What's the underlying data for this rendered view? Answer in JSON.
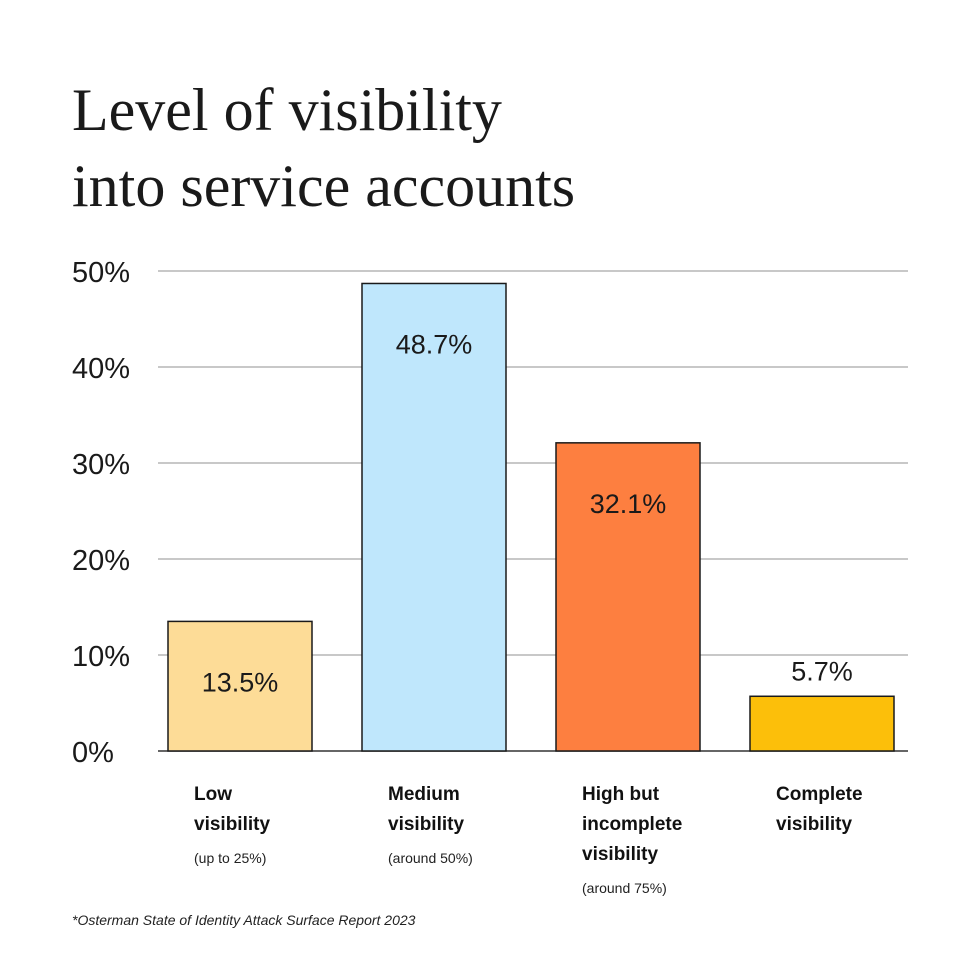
{
  "title_lines": [
    "Level of visibility",
    "into service accounts"
  ],
  "footnote": "*Osterman State of Identity Attack Surface Report 2023",
  "chart_data": {
    "type": "bar",
    "title": "Level of visibility into service accounts",
    "xlabel": "",
    "ylabel": "",
    "ylim": [
      0,
      50
    ],
    "yticks": [
      0,
      10,
      20,
      30,
      40,
      50
    ],
    "ytick_labels": [
      "0%",
      "10%",
      "20%",
      "30%",
      "40%",
      "50%"
    ],
    "grid": true,
    "categories": [
      {
        "name_lines": [
          "Low",
          "visibility"
        ],
        "note": "(up to 25%)"
      },
      {
        "name_lines": [
          "Medium",
          "visibility"
        ],
        "note": "(around 50%)"
      },
      {
        "name_lines": [
          "High but",
          "incomplete",
          "visibility"
        ],
        "note": "(around 75%)"
      },
      {
        "name_lines": [
          "Complete",
          "visibility"
        ],
        "note": ""
      }
    ],
    "values": [
      13.5,
      48.7,
      32.1,
      5.7
    ],
    "value_labels": [
      "13.5%",
      "48.7%",
      "32.1%",
      "5.7%"
    ],
    "colors": [
      "#fddc97",
      "#bfe7fc",
      "#fd7f40",
      "#fcbf0a"
    ]
  }
}
